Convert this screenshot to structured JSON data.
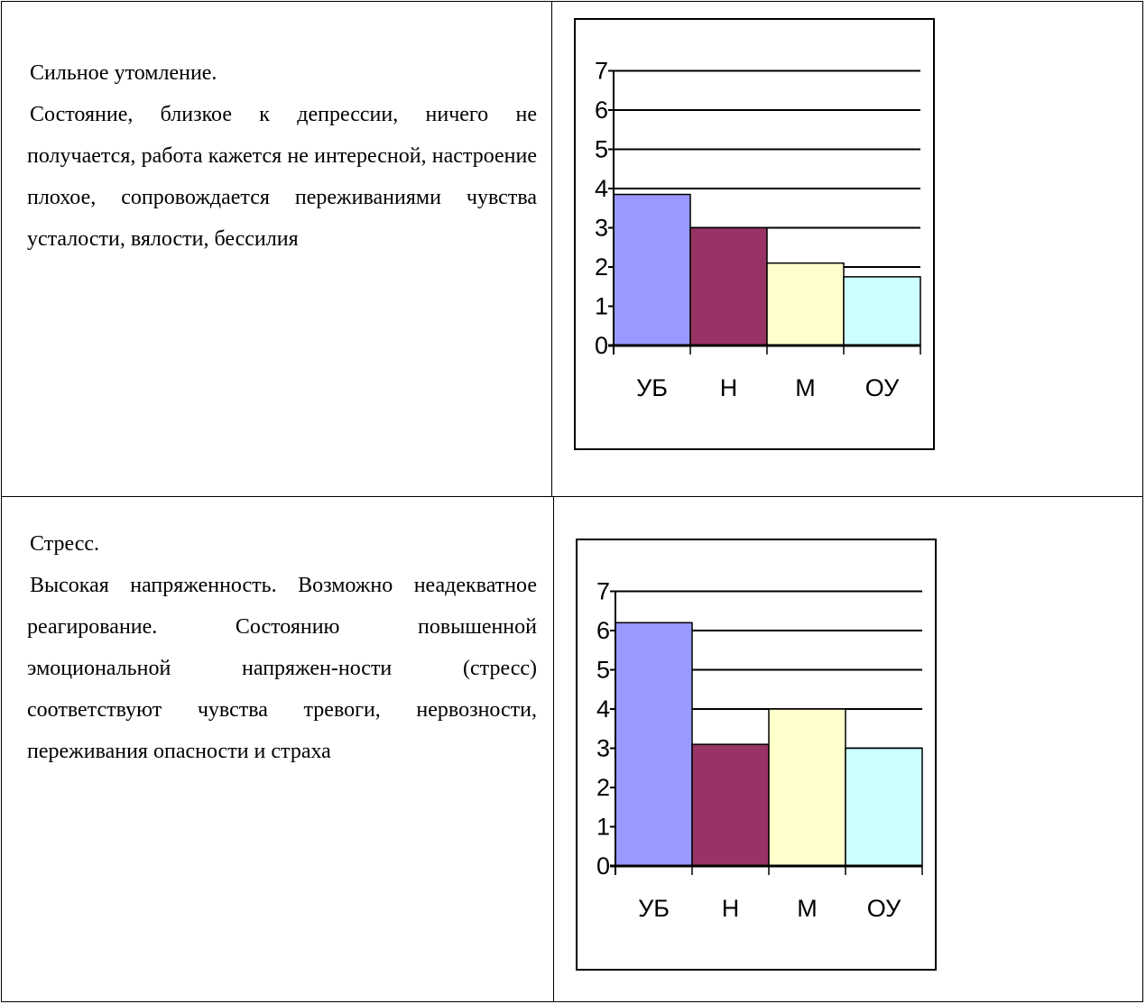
{
  "rows": [
    {
      "heading": "Сильное утомление.",
      "description": "Состояние, близкое к депрессии, ничего не получается, работа кажется не интересной, настроение плохое, сопровождается переживаниями чувства усталости, вялости, бессилия"
    },
    {
      "heading": "Стресс.",
      "description": "Высокая напряженность. Возможно неадекватное реагирование. Состоянию повышенной эмоциональной напряжен-ности (стресс) соответствуют чувства тревоги, нервозности, переживания опасности и страха"
    }
  ],
  "chart_data": [
    {
      "type": "bar",
      "categories": [
        "УБ",
        "Н",
        "М",
        "ОУ"
      ],
      "values": [
        3.85,
        3.0,
        2.1,
        1.75
      ],
      "colors": [
        "#9999ff",
        "#993366",
        "#ffffcc",
        "#ccffff"
      ],
      "yticks": [
        "0",
        "1",
        "2",
        "3",
        "4",
        "5",
        "6",
        "7"
      ],
      "ylim": [
        0,
        7
      ],
      "grid": true
    },
    {
      "type": "bar",
      "categories": [
        "УБ",
        "Н",
        "М",
        "ОУ"
      ],
      "values": [
        6.2,
        3.1,
        4.0,
        3.0
      ],
      "colors": [
        "#9999ff",
        "#993366",
        "#ffffcc",
        "#ccffff"
      ],
      "yticks": [
        "0",
        "1",
        "2",
        "3",
        "4",
        "5",
        "6",
        "7"
      ],
      "ylim": [
        0,
        7
      ],
      "grid": true
    }
  ]
}
